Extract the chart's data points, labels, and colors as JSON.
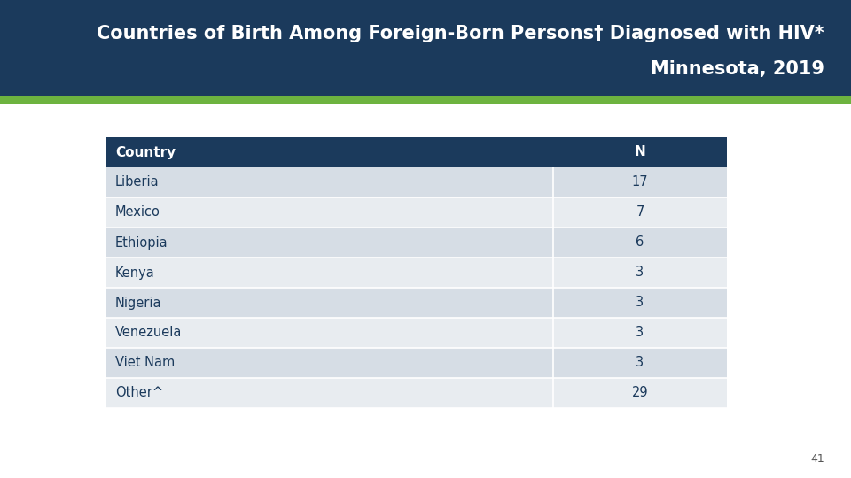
{
  "title_line1": "Countries of Birth Among Foreign-Born Persons† Diagnosed with HIV*",
  "title_line2": "Minnesota, 2019",
  "header_bg": "#1b3a5c",
  "header_text_color": "#ffffff",
  "green_bar_color": "#6db33f",
  "page_bg": "#ffffff",
  "table_header": [
    "Country",
    "N"
  ],
  "table_rows": [
    [
      "Liberia",
      "17"
    ],
    [
      "Mexico",
      "7"
    ],
    [
      "Ethiopia",
      "6"
    ],
    [
      "Kenya",
      "3"
    ],
    [
      "Nigeria",
      "3"
    ],
    [
      "Venezuela",
      "3"
    ],
    [
      "Viet Nam",
      "3"
    ],
    [
      "Other^",
      "29"
    ]
  ],
  "row_color_a": "#d6dde5",
  "row_color_b": "#e8ecf0",
  "table_header_bg": "#1b3a5c",
  "table_text_color": "#1b3a5c",
  "page_number": "41",
  "col_split": 0.72
}
